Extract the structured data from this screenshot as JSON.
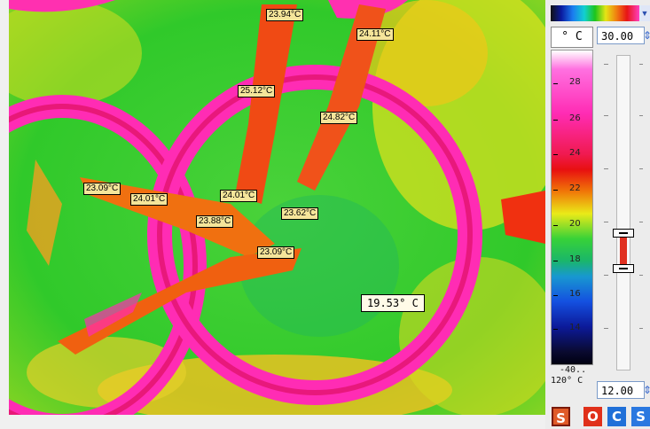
{
  "thermal_image": {
    "labels": [
      "23.94°C",
      "24.11°C",
      "25.12°C",
      "24.82°C",
      "23.09°C",
      "24.01°C",
      "24.01°C",
      "23.88°C",
      "23.62°C",
      "23.09°C"
    ],
    "main_readout": "19.53° C"
  },
  "panel": {
    "unit": "° C",
    "max_value": "30.00",
    "min_value": "12.00",
    "scale_ticks": [
      "28",
      "26",
      "24",
      "22",
      "20",
      "18",
      "16",
      "14"
    ],
    "range_text_line1": "-40..",
    "range_text_line2": "120° C",
    "colors": {
      "hot": "#ff2cb4",
      "warm": "#e81010",
      "cool": "#1cc51c",
      "cold": "#1450e0"
    }
  },
  "buttons": [
    {
      "label": "S",
      "icon": "s-button",
      "color": "#e05a28"
    },
    {
      "label": "O",
      "icon": "o-button",
      "color": "#e0301a"
    },
    {
      "label": "C",
      "icon": "c-button",
      "color": "#2070d8"
    },
    {
      "label": "S",
      "icon": "s-button-2",
      "color": "#2a78e0"
    }
  ]
}
